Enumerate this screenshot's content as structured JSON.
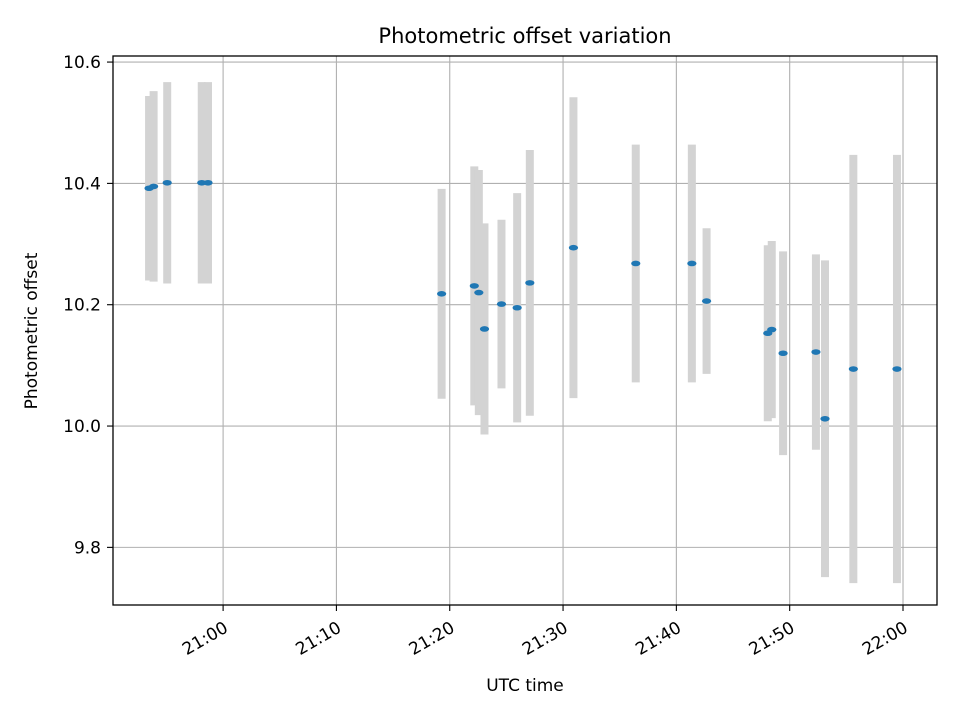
{
  "chart_data": {
    "type": "scatter",
    "title": "Photometric offset variation",
    "xlabel": "UTC time",
    "ylabel": "Photometric offset",
    "x_unit": "UTC time of day (HH:MM)",
    "xlim": [
      "20:50:17",
      "22:03:00"
    ],
    "ylim": [
      9.705,
      10.61
    ],
    "x_ticks": [
      "21:00",
      "21:10",
      "21:20",
      "21:30",
      "21:40",
      "21:50",
      "22:00"
    ],
    "y_ticks": [
      9.8,
      10.0,
      10.2,
      10.4,
      10.6
    ],
    "y_tick_labels": [
      "9.8",
      "10.0",
      "10.2",
      "10.4",
      "10.6"
    ],
    "grid": true,
    "colors": {
      "point": "#1f77b4",
      "errorbar": "#d3d3d3",
      "grid": "#b0b0b0"
    },
    "series": [
      {
        "points": [
          {
            "x": "20:53:28",
            "y": 10.392,
            "yerr": 0.152
          },
          {
            "x": "20:53:52",
            "y": 10.395,
            "yerr": 0.157
          },
          {
            "x": "20:55:04",
            "y": 10.401,
            "yerr": 0.166
          },
          {
            "x": "20:58:07",
            "y": 10.401,
            "yerr": 0.166
          },
          {
            "x": "20:58:40",
            "y": 10.401,
            "yerr": 0.166
          },
          {
            "x": "21:19:17",
            "y": 10.218,
            "yerr": 0.173
          },
          {
            "x": "21:22:10",
            "y": 10.231,
            "yerr": 0.197
          },
          {
            "x": "21:22:34",
            "y": 10.22,
            "yerr": 0.202
          },
          {
            "x": "21:23:04",
            "y": 10.16,
            "yerr": 0.174
          },
          {
            "x": "21:24:34",
            "y": 10.201,
            "yerr": 0.139
          },
          {
            "x": "21:25:57",
            "y": 10.195,
            "yerr": 0.189
          },
          {
            "x": "21:27:04",
            "y": 10.236,
            "yerr": 0.219
          },
          {
            "x": "21:30:55",
            "y": 10.294,
            "yerr": 0.248
          },
          {
            "x": "21:36:25",
            "y": 10.268,
            "yerr": 0.196
          },
          {
            "x": "21:41:22",
            "y": 10.268,
            "yerr": 0.196
          },
          {
            "x": "21:42:40",
            "y": 10.206,
            "yerr": 0.12
          },
          {
            "x": "21:48:04",
            "y": 10.153,
            "yerr": 0.145
          },
          {
            "x": "21:48:25",
            "y": 10.159,
            "yerr": 0.146
          },
          {
            "x": "21:49:25",
            "y": 10.12,
            "yerr": 0.168
          },
          {
            "x": "21:52:19",
            "y": 10.122,
            "yerr": 0.161
          },
          {
            "x": "21:53:07",
            "y": 10.012,
            "yerr": 0.261
          },
          {
            "x": "21:55:37",
            "y": 10.094,
            "yerr": 0.353
          },
          {
            "x": "21:59:28",
            "y": 10.094,
            "yerr": 0.353
          }
        ]
      }
    ]
  }
}
